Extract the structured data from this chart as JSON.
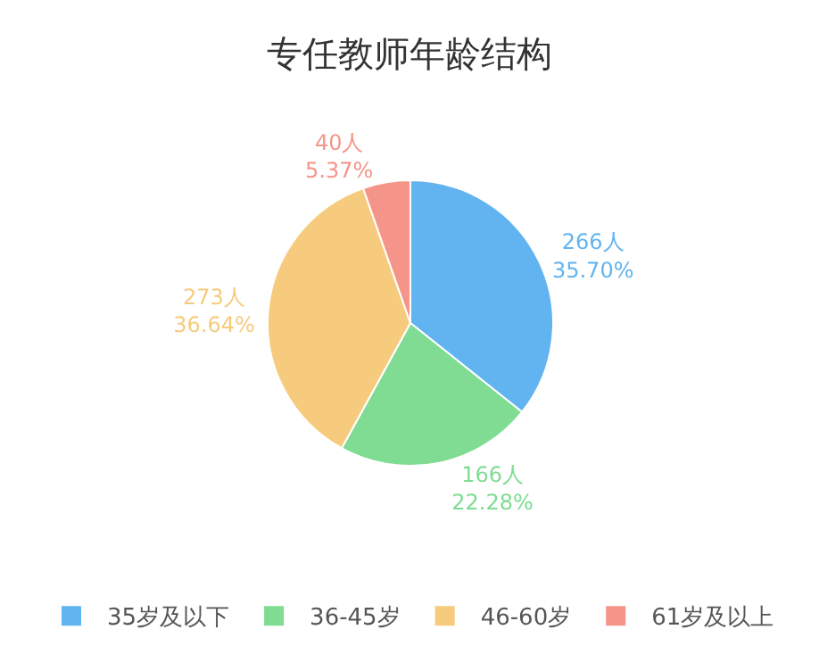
{
  "chart_data": {
    "type": "pie",
    "title": "专任教师年龄结构",
    "categories": [
      "35岁及以下",
      "36-45岁",
      "46-60岁",
      "61岁及以上"
    ],
    "values": [
      266,
      166,
      273,
      40
    ],
    "value_labels": [
      "266人\n35.70%",
      "166人\n22.28%",
      "273人\n36.64%",
      "40人\n5.37%"
    ],
    "colors": [
      "#62b4f0",
      "#7fdc92",
      "#f6cb7d",
      "#f5958a"
    ],
    "legend": "bottom"
  }
}
